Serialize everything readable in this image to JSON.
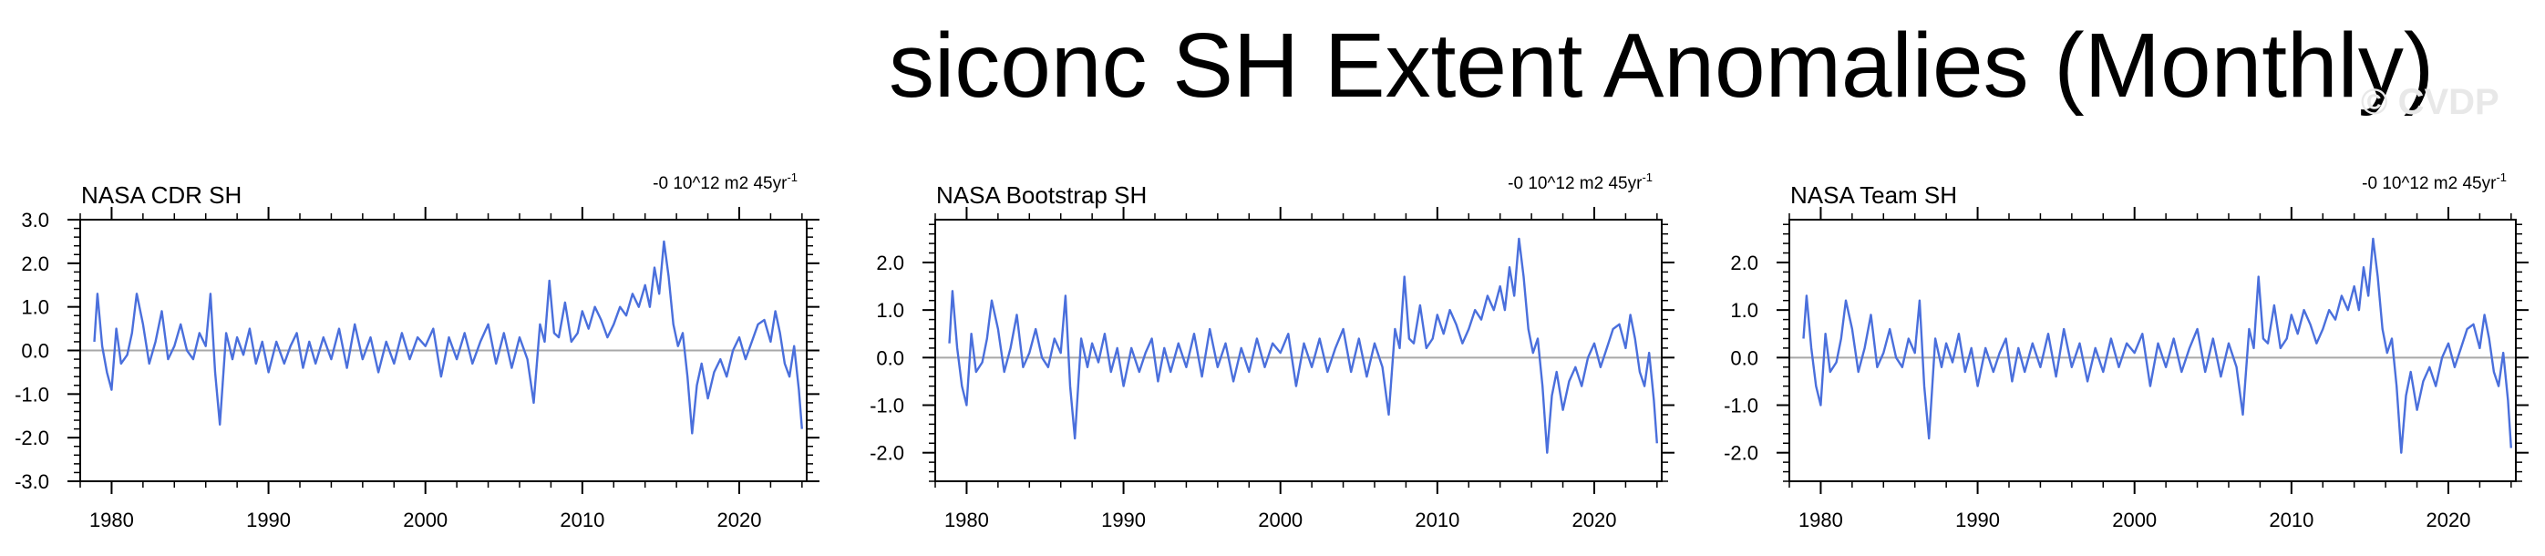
{
  "figure": {
    "title": "siconc SH Extent Anomalies (Monthly)",
    "watermark": "© CVDP"
  },
  "colors": {
    "series": "#4a6fdc",
    "zero_line": "#a8a8a8",
    "axis": "#000000"
  },
  "chart_data": [
    {
      "type": "line",
      "title": "NASA CDR SH",
      "trend_label": "-0 10^12 m2 45yr",
      "trend_exponent": "-1",
      "xlim": [
        1978,
        2024.3
      ],
      "ylim": [
        -3.0,
        3.0
      ],
      "xticks": [
        1980,
        1990,
        2000,
        2010,
        2020
      ],
      "xtick_labels": [
        "1980",
        "1990",
        "2000",
        "2010",
        "2020"
      ],
      "yticks": [
        -3,
        -2,
        -1,
        0,
        1,
        2,
        3
      ],
      "ytick_labels": [
        "-3.0",
        "-2.0",
        "-1.0",
        "0.0",
        "1.0",
        "2.0",
        "3.0"
      ],
      "grid": false,
      "series": [
        {
          "x": [
            1978.9,
            1979.1,
            1979.4,
            1979.7,
            1980,
            1980.3,
            1980.6,
            1981,
            1981.3,
            1981.6,
            1982,
            1982.4,
            1982.8,
            1983.2,
            1983.6,
            1984,
            1984.4,
            1984.8,
            1985.2,
            1985.6,
            1986,
            1986.3,
            1986.6,
            1986.9,
            1987.3,
            1987.7,
            1988,
            1988.4,
            1988.8,
            1989.2,
            1989.6,
            1990,
            1990.5,
            1991,
            1991.4,
            1991.8,
            1992.2,
            1992.6,
            1993,
            1993.5,
            1994,
            1994.5,
            1995,
            1995.5,
            1996,
            1996.5,
            1997,
            1997.5,
            1998,
            1998.5,
            1999,
            1999.5,
            2000,
            2000.5,
            2001,
            2001.5,
            2002,
            2002.5,
            2003,
            2003.5,
            2004,
            2004.5,
            2005,
            2005.5,
            2006,
            2006.5,
            2006.9,
            2007.3,
            2007.6,
            2007.9,
            2008.2,
            2008.5,
            2008.9,
            2009.3,
            2009.7,
            2010,
            2010.4,
            2010.8,
            2011.2,
            2011.6,
            2012,
            2012.4,
            2012.8,
            2013.2,
            2013.6,
            2014,
            2014.3,
            2014.6,
            2014.9,
            2015.2,
            2015.5,
            2015.8,
            2016.1,
            2016.4,
            2016.7,
            2017,
            2017.3,
            2017.6,
            2018,
            2018.4,
            2018.8,
            2019.2,
            2019.6,
            2020,
            2020.4,
            2020.8,
            2021.2,
            2021.6,
            2022,
            2022.3,
            2022.6,
            2022.9,
            2023.2,
            2023.5,
            2023.8,
            2024
          ],
          "y": [
            0.2,
            1.3,
            0.1,
            -0.5,
            -0.9,
            0.5,
            -0.3,
            -0.1,
            0.4,
            1.3,
            0.6,
            -0.3,
            0.2,
            0.9,
            -0.2,
            0.1,
            0.6,
            0.0,
            -0.2,
            0.4,
            0.1,
            1.3,
            -0.5,
            -1.7,
            0.4,
            -0.2,
            0.3,
            -0.1,
            0.5,
            -0.3,
            0.2,
            -0.5,
            0.2,
            -0.3,
            0.1,
            0.4,
            -0.4,
            0.2,
            -0.3,
            0.3,
            -0.2,
            0.5,
            -0.4,
            0.6,
            -0.2,
            0.3,
            -0.5,
            0.2,
            -0.3,
            0.4,
            -0.2,
            0.3,
            0.1,
            0.5,
            -0.6,
            0.3,
            -0.2,
            0.4,
            -0.3,
            0.2,
            0.6,
            -0.3,
            0.4,
            -0.4,
            0.3,
            -0.2,
            -1.2,
            0.6,
            0.2,
            1.6,
            0.4,
            0.3,
            1.1,
            0.2,
            0.4,
            0.9,
            0.5,
            1.0,
            0.7,
            0.3,
            0.6,
            1.0,
            0.8,
            1.3,
            1.0,
            1.5,
            1.0,
            1.9,
            1.3,
            2.5,
            1.7,
            0.6,
            0.1,
            0.4,
            -0.6,
            -1.9,
            -0.8,
            -0.3,
            -1.1,
            -0.5,
            -0.2,
            -0.6,
            0.0,
            0.3,
            -0.2,
            0.2,
            0.6,
            0.7,
            0.2,
            0.9,
            0.4,
            -0.3,
            -0.6,
            0.1,
            -0.9,
            -1.8
          ]
        }
      ]
    },
    {
      "type": "line",
      "title": "NASA Bootstrap SH",
      "trend_label": "-0 10^12 m2 45yr",
      "trend_exponent": "-1",
      "xlim": [
        1978,
        2024.3
      ],
      "ylim": [
        -2.6,
        2.9
      ],
      "xticks": [
        1980,
        1990,
        2000,
        2010,
        2020
      ],
      "xtick_labels": [
        "1980",
        "1990",
        "2000",
        "2010",
        "2020"
      ],
      "yticks": [
        -2,
        -1,
        0,
        1,
        2
      ],
      "ytick_labels": [
        "-2.0",
        "-1.0",
        "0.0",
        "1.0",
        "2.0"
      ],
      "grid": false,
      "series": [
        {
          "x": [
            1978.9,
            1979.1,
            1979.4,
            1979.7,
            1980,
            1980.3,
            1980.6,
            1981,
            1981.3,
            1981.6,
            1982,
            1982.4,
            1982.8,
            1983.2,
            1983.6,
            1984,
            1984.4,
            1984.8,
            1985.2,
            1985.6,
            1986,
            1986.3,
            1986.6,
            1986.9,
            1987.3,
            1987.7,
            1988,
            1988.4,
            1988.8,
            1989.2,
            1989.6,
            1990,
            1990.5,
            1991,
            1991.4,
            1991.8,
            1992.2,
            1992.6,
            1993,
            1993.5,
            1994,
            1994.5,
            1995,
            1995.5,
            1996,
            1996.5,
            1997,
            1997.5,
            1998,
            1998.5,
            1999,
            1999.5,
            2000,
            2000.5,
            2001,
            2001.5,
            2002,
            2002.5,
            2003,
            2003.5,
            2004,
            2004.5,
            2005,
            2005.5,
            2006,
            2006.5,
            2006.9,
            2007.3,
            2007.6,
            2007.9,
            2008.2,
            2008.5,
            2008.9,
            2009.3,
            2009.7,
            2010,
            2010.4,
            2010.8,
            2011.2,
            2011.6,
            2012,
            2012.4,
            2012.8,
            2013.2,
            2013.6,
            2014,
            2014.3,
            2014.6,
            2014.9,
            2015.2,
            2015.5,
            2015.8,
            2016.1,
            2016.4,
            2016.7,
            2017,
            2017.3,
            2017.6,
            2018,
            2018.4,
            2018.8,
            2019.2,
            2019.6,
            2020,
            2020.4,
            2020.8,
            2021.2,
            2021.6,
            2022,
            2022.3,
            2022.6,
            2022.9,
            2023.2,
            2023.5,
            2023.8,
            2024
          ],
          "y": [
            0.3,
            1.4,
            0.2,
            -0.6,
            -1.0,
            0.5,
            -0.3,
            -0.1,
            0.4,
            1.2,
            0.6,
            -0.3,
            0.2,
            0.9,
            -0.2,
            0.1,
            0.6,
            0.0,
            -0.2,
            0.4,
            0.1,
            1.3,
            -0.6,
            -1.7,
            0.4,
            -0.2,
            0.3,
            -0.1,
            0.5,
            -0.3,
            0.2,
            -0.6,
            0.2,
            -0.3,
            0.1,
            0.4,
            -0.5,
            0.2,
            -0.3,
            0.3,
            -0.2,
            0.5,
            -0.4,
            0.6,
            -0.2,
            0.3,
            -0.5,
            0.2,
            -0.3,
            0.4,
            -0.2,
            0.3,
            0.1,
            0.5,
            -0.6,
            0.3,
            -0.2,
            0.4,
            -0.3,
            0.2,
            0.6,
            -0.3,
            0.4,
            -0.4,
            0.3,
            -0.2,
            -1.2,
            0.6,
            0.2,
            1.7,
            0.4,
            0.3,
            1.1,
            0.2,
            0.4,
            0.9,
            0.5,
            1.0,
            0.7,
            0.3,
            0.6,
            1.0,
            0.8,
            1.3,
            1.0,
            1.5,
            1.0,
            1.9,
            1.3,
            2.5,
            1.7,
            0.6,
            0.1,
            0.4,
            -0.6,
            -2.0,
            -0.8,
            -0.3,
            -1.1,
            -0.5,
            -0.2,
            -0.6,
            0.0,
            0.3,
            -0.2,
            0.2,
            0.6,
            0.7,
            0.2,
            0.9,
            0.4,
            -0.3,
            -0.6,
            0.1,
            -0.9,
            -1.8
          ]
        }
      ]
    },
    {
      "type": "line",
      "title": "NASA Team SH",
      "trend_label": "-0 10^12 m2 45yr",
      "trend_exponent": "-1",
      "xlim": [
        1978,
        2024.3
      ],
      "ylim": [
        -2.6,
        2.9
      ],
      "xticks": [
        1980,
        1990,
        2000,
        2010,
        2020
      ],
      "xtick_labels": [
        "1980",
        "1990",
        "2000",
        "2010",
        "2020"
      ],
      "yticks": [
        -2,
        -1,
        0,
        1,
        2
      ],
      "ytick_labels": [
        "-2.0",
        "-1.0",
        "0.0",
        "1.0",
        "2.0"
      ],
      "grid": false,
      "series": [
        {
          "x": [
            1978.9,
            1979.1,
            1979.4,
            1979.7,
            1980,
            1980.3,
            1980.6,
            1981,
            1981.3,
            1981.6,
            1982,
            1982.4,
            1982.8,
            1983.2,
            1983.6,
            1984,
            1984.4,
            1984.8,
            1985.2,
            1985.6,
            1986,
            1986.3,
            1986.6,
            1986.9,
            1987.3,
            1987.7,
            1988,
            1988.4,
            1988.8,
            1989.2,
            1989.6,
            1990,
            1990.5,
            1991,
            1991.4,
            1991.8,
            1992.2,
            1992.6,
            1993,
            1993.5,
            1994,
            1994.5,
            1995,
            1995.5,
            1996,
            1996.5,
            1997,
            1997.5,
            1998,
            1998.5,
            1999,
            1999.5,
            2000,
            2000.5,
            2001,
            2001.5,
            2002,
            2002.5,
            2003,
            2003.5,
            2004,
            2004.5,
            2005,
            2005.5,
            2006,
            2006.5,
            2006.9,
            2007.3,
            2007.6,
            2007.9,
            2008.2,
            2008.5,
            2008.9,
            2009.3,
            2009.7,
            2010,
            2010.4,
            2010.8,
            2011.2,
            2011.6,
            2012,
            2012.4,
            2012.8,
            2013.2,
            2013.6,
            2014,
            2014.3,
            2014.6,
            2014.9,
            2015.2,
            2015.5,
            2015.8,
            2016.1,
            2016.4,
            2016.7,
            2017,
            2017.3,
            2017.6,
            2018,
            2018.4,
            2018.8,
            2019.2,
            2019.6,
            2020,
            2020.4,
            2020.8,
            2021.2,
            2021.6,
            2022,
            2022.3,
            2022.6,
            2022.9,
            2023.2,
            2023.5,
            2023.8,
            2024
          ],
          "y": [
            0.4,
            1.3,
            0.2,
            -0.6,
            -1.0,
            0.5,
            -0.3,
            -0.1,
            0.4,
            1.2,
            0.6,
            -0.3,
            0.2,
            0.9,
            -0.2,
            0.1,
            0.6,
            0.0,
            -0.2,
            0.4,
            0.1,
            1.2,
            -0.6,
            -1.7,
            0.4,
            -0.2,
            0.3,
            -0.1,
            0.5,
            -0.3,
            0.2,
            -0.6,
            0.2,
            -0.3,
            0.1,
            0.4,
            -0.5,
            0.2,
            -0.3,
            0.3,
            -0.2,
            0.5,
            -0.4,
            0.6,
            -0.2,
            0.3,
            -0.5,
            0.2,
            -0.3,
            0.4,
            -0.2,
            0.3,
            0.1,
            0.5,
            -0.6,
            0.3,
            -0.2,
            0.4,
            -0.3,
            0.2,
            0.6,
            -0.3,
            0.4,
            -0.4,
            0.3,
            -0.2,
            -1.2,
            0.6,
            0.2,
            1.7,
            0.4,
            0.3,
            1.1,
            0.2,
            0.4,
            0.9,
            0.5,
            1.0,
            0.7,
            0.3,
            0.6,
            1.0,
            0.8,
            1.3,
            1.0,
            1.5,
            1.0,
            1.9,
            1.3,
            2.5,
            1.7,
            0.6,
            0.1,
            0.4,
            -0.6,
            -2.0,
            -0.8,
            -0.3,
            -1.1,
            -0.5,
            -0.2,
            -0.6,
            0.0,
            0.3,
            -0.2,
            0.2,
            0.6,
            0.7,
            0.2,
            0.9,
            0.4,
            -0.3,
            -0.6,
            0.1,
            -0.9,
            -1.9
          ]
        }
      ]
    }
  ]
}
